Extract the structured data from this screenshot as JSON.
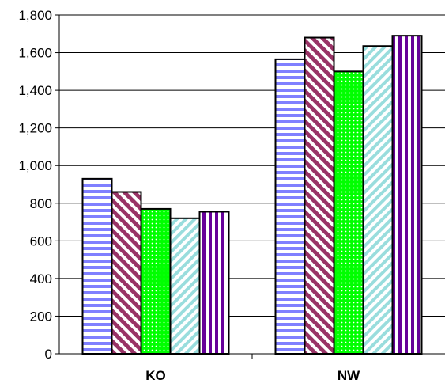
{
  "chart_data": {
    "type": "bar",
    "title": "",
    "xlabel": "",
    "ylabel": "",
    "categories": [
      "KO",
      "NW"
    ],
    "ylim": [
      0,
      1800
    ],
    "ytick_step": 200,
    "ytick_labels": [
      "0",
      "200",
      "400",
      "600",
      "800",
      "1,000",
      "1,200",
      "1,400",
      "1,600",
      "1,800"
    ],
    "grid": true,
    "legend": "none",
    "series": [
      {
        "values": [
          930,
          1565
        ],
        "color": "#8080ff",
        "pattern": "horizontal-stripes"
      },
      {
        "values": [
          860,
          1680
        ],
        "color": "#993366",
        "pattern": "diagonal-stripes"
      },
      {
        "values": [
          770,
          1500
        ],
        "color": "#00ff00",
        "pattern": "dots"
      },
      {
        "values": [
          720,
          1635
        ],
        "color": "#99dddd",
        "pattern": "reverse-diagonal-stripes"
      },
      {
        "values": [
          755,
          1690
        ],
        "color": "#660099",
        "pattern": "vertical-stripes"
      }
    ]
  }
}
